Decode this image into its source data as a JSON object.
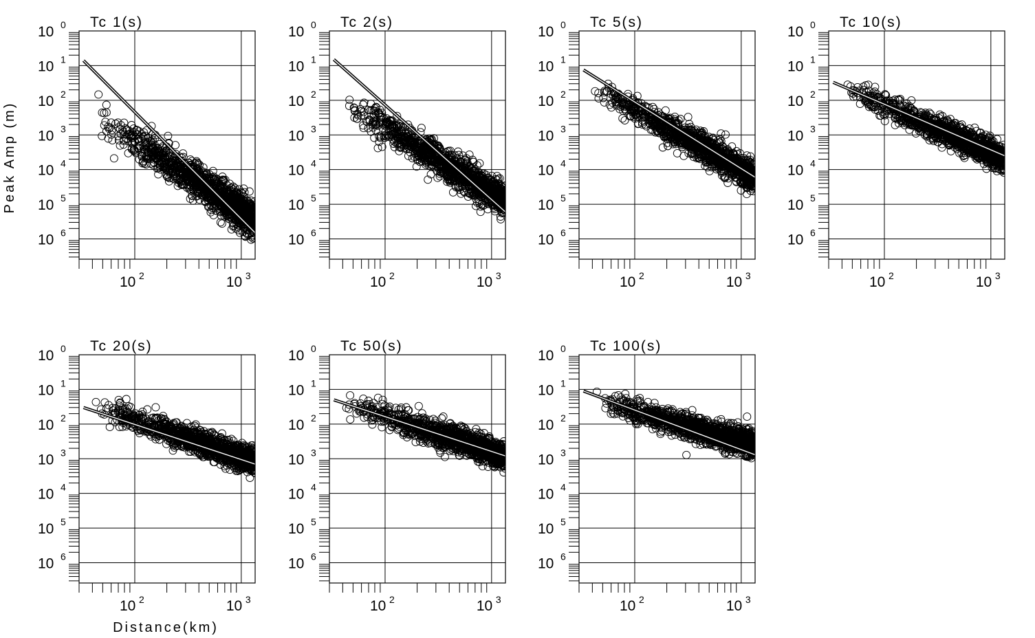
{
  "chart_data": {
    "type": "scatter",
    "xlabel": "Distance(km)",
    "ylabel": "Peak Amp (m)",
    "xscale": "log",
    "yscale": "log",
    "xlim": [
      30,
      1350
    ],
    "ylim": [
      2.6e-07,
      1
    ],
    "x_ticks": [
      {
        "base": "10",
        "exp": "2"
      },
      {
        "base": "10",
        "exp": "3"
      }
    ],
    "y_ticks": [
      {
        "base": "10",
        "exp": "0"
      },
      {
        "base": "10",
        "exp": "1"
      },
      {
        "base": "10",
        "exp": "2"
      },
      {
        "base": "10",
        "exp": "3"
      },
      {
        "base": "10",
        "exp": "4"
      },
      {
        "base": "10",
        "exp": "5"
      },
      {
        "base": "10",
        "exp": "6"
      }
    ],
    "grid": true,
    "panels": [
      {
        "title": "Tc      1(s)",
        "fit_line": {
          "x": [
            33,
            1350
          ],
          "y": [
            0.14,
            1.5e-06
          ]
        },
        "scatter": {
          "x_range": [
            40,
            1350
          ],
          "center_start": 0.004,
          "center_end": 3.5e-06,
          "spread_decades": 0.5,
          "n_points": 1300
        }
      },
      {
        "title": "Tc      2(s)",
        "fit_line": {
          "x": [
            33,
            1350
          ],
          "y": [
            0.15,
            6e-06
          ]
        },
        "scatter": {
          "x_range": [
            40,
            1350
          ],
          "center_start": 0.01,
          "center_end": 1.2e-05,
          "spread_decades": 0.45,
          "n_points": 1300
        }
      },
      {
        "title": "Tc      5(s)",
        "fit_line": {
          "x": [
            33,
            1350
          ],
          "y": [
            0.075,
            6e-05
          ]
        },
        "scatter": {
          "x_range": [
            40,
            1350
          ],
          "center_start": 0.025,
          "center_end": 6e-05,
          "spread_decades": 0.4,
          "n_points": 1300
        }
      },
      {
        "title": "Tc    10(s)",
        "fit_line": {
          "x": [
            33,
            1350
          ],
          "y": [
            0.033,
            0.00025
          ]
        },
        "scatter": {
          "x_range": [
            40,
            1350
          ],
          "center_start": 0.025,
          "center_end": 0.0002,
          "spread_decades": 0.35,
          "n_points": 1300
        }
      },
      {
        "title": "Tc    20(s)",
        "fit_line": {
          "x": [
            33,
            1350
          ],
          "y": [
            0.03,
            0.0007
          ]
        },
        "scatter": {
          "x_range": [
            40,
            1350
          ],
          "center_start": 0.035,
          "center_end": 0.0008,
          "spread_decades": 0.35,
          "n_points": 1300
        }
      },
      {
        "title": "Tc    50(s)",
        "fit_line": {
          "x": [
            33,
            1350
          ],
          "y": [
            0.05,
            0.0012
          ]
        },
        "scatter": {
          "x_range": [
            40,
            1350
          ],
          "center_start": 0.04,
          "center_end": 0.0012,
          "spread_decades": 0.35,
          "n_points": 1300
        }
      },
      {
        "title": "Tc  100(s)",
        "fit_line": {
          "x": [
            33,
            1350
          ],
          "y": [
            0.09,
            0.0013
          ]
        },
        "scatter": {
          "x_range": [
            40,
            1350
          ],
          "center_start": 0.05,
          "center_end": 0.0025,
          "spread_decades": 0.35,
          "n_points": 1300
        }
      }
    ]
  }
}
